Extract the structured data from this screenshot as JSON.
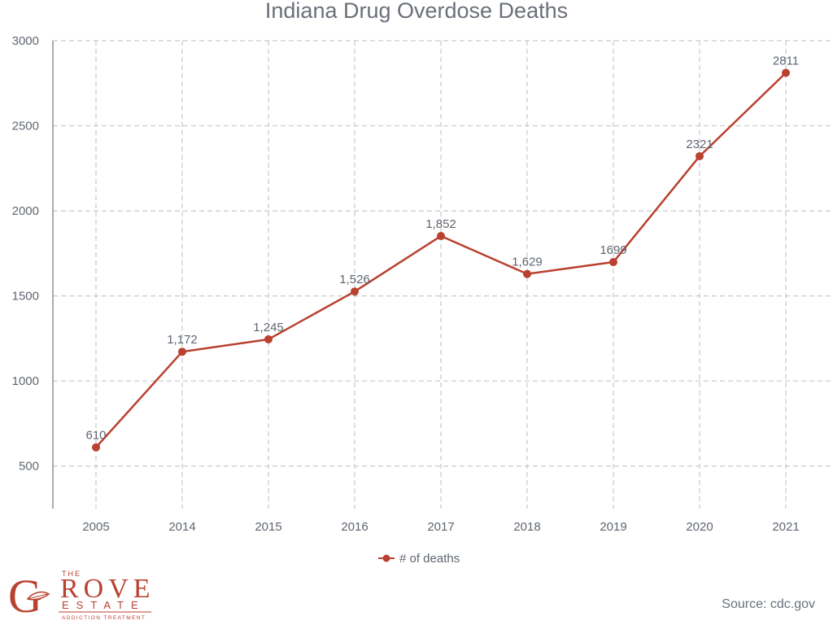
{
  "chart_data": {
    "type": "line",
    "title": "Indiana Drug Overdose Deaths",
    "categories": [
      "2005",
      "2014",
      "2015",
      "2016",
      "2017",
      "2018",
      "2019",
      "2020",
      "2021"
    ],
    "series": [
      {
        "name": "# of deaths",
        "values": [
          610,
          1172,
          1245,
          1526,
          1852,
          1629,
          1699,
          2321,
          2811
        ],
        "labels": [
          "610",
          "1,172",
          "1,245",
          "1,526",
          "1,852",
          "1,629",
          "1699",
          "2321",
          "2811"
        ]
      }
    ],
    "yticks": [
      "500",
      "1000",
      "1500",
      "2000",
      "2500",
      "3000"
    ],
    "ylim": [
      250,
      3000
    ],
    "grid": true,
    "legend_position": "bottom-center",
    "line_color": "#b9412f"
  },
  "source": "Source: cdc.gov",
  "logo": {
    "big_letters": "ROVE",
    "top_word": "THE",
    "middle_word": "ESTATE",
    "bottom_word": "ADDICTION TREATMENT",
    "initials": [
      "G",
      "E"
    ],
    "icon": "leaf-icon"
  }
}
